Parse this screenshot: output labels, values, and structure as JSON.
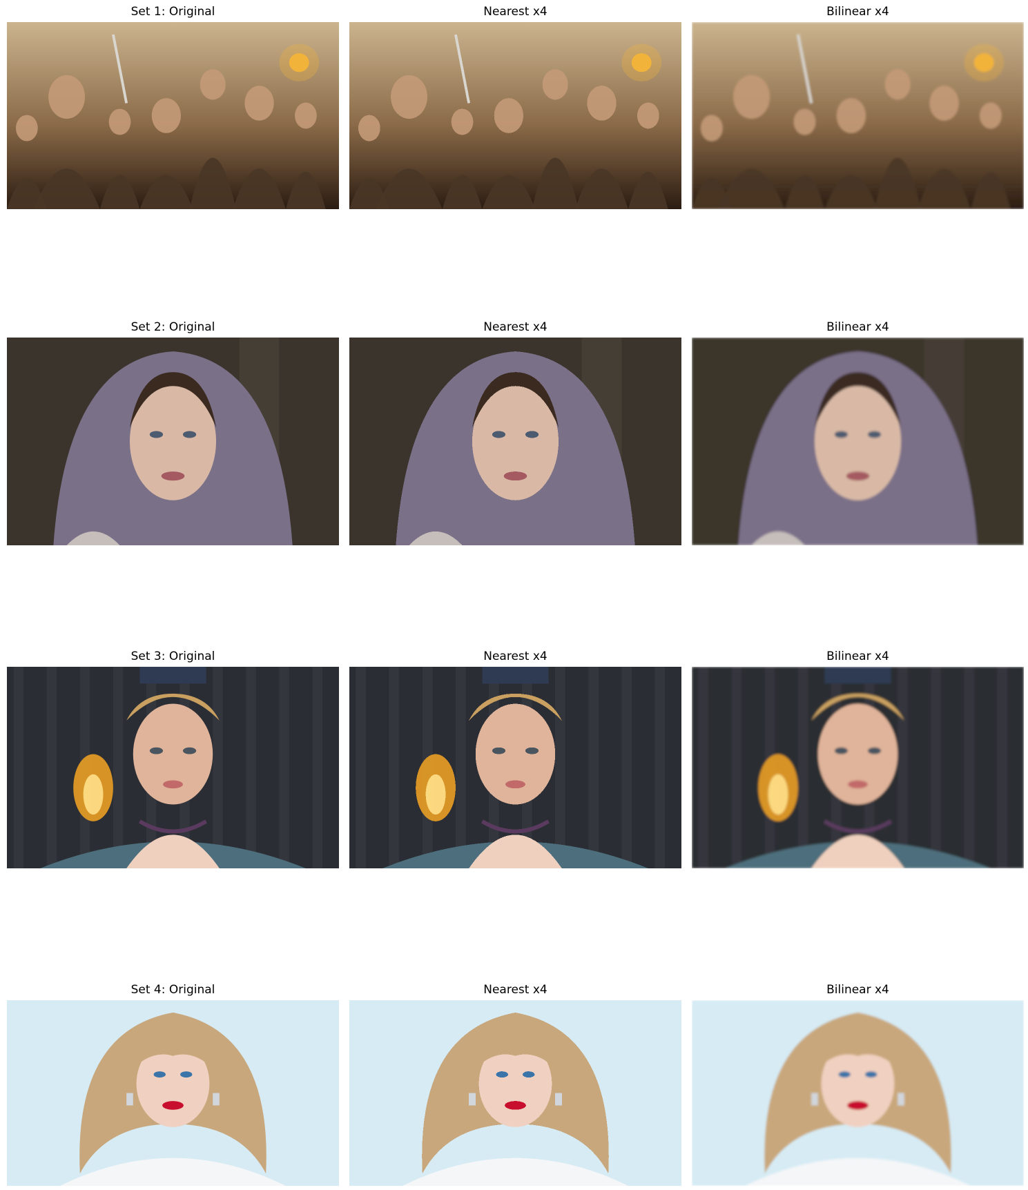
{
  "figure": {
    "rows": [
      {
        "id": "set1",
        "panels": [
          {
            "title": "Set 1: Original",
            "method": "original",
            "scene": "fantasy-battle-ensemble",
            "colors": {
              "sky": "#cbb48e",
              "mid": "#8a6a48",
              "dark": "#2b1c12",
              "accent": "#f2b33a"
            }
          },
          {
            "title": "Nearest x4",
            "method": "nearest",
            "scene": "fantasy-battle-ensemble",
            "colors": {
              "sky": "#cbb48e",
              "mid": "#8a6a48",
              "dark": "#2b1c12",
              "accent": "#f2b33a"
            }
          },
          {
            "title": "Bilinear x4",
            "method": "bilinear",
            "scene": "fantasy-battle-ensemble",
            "colors": {
              "sky": "#cbb48e",
              "mid": "#8a6a48",
              "dark": "#2b1c12",
              "accent": "#f2b33a"
            }
          }
        ]
      },
      {
        "id": "set2",
        "panels": [
          {
            "title": "Set 2: Original",
            "method": "original",
            "scene": "hooded-woman-portrait",
            "colors": {
              "bg": "#3a342c",
              "hood": "#7a7088",
              "skin": "#d9b9a6",
              "lips": "#a45a60"
            }
          },
          {
            "title": "Nearest x4",
            "method": "nearest",
            "scene": "hooded-woman-portrait",
            "colors": {
              "bg": "#3a342c",
              "hood": "#7a7088",
              "skin": "#d9b9a6",
              "lips": "#a45a60"
            }
          },
          {
            "title": "Bilinear x4",
            "method": "bilinear",
            "scene": "hooded-woman-portrait",
            "colors": {
              "bg": "#3a342c",
              "hood": "#7a7088",
              "skin": "#d9b9a6",
              "lips": "#a45a60"
            }
          }
        ]
      },
      {
        "id": "set3",
        "panels": [
          {
            "title": "Set 3: Original",
            "method": "original",
            "scene": "crowned-queen-portrait",
            "colors": {
              "bg": "#2a2d33",
              "fire": "#f6a623",
              "skin": "#e0b49a",
              "gown": "#4d6e7c"
            }
          },
          {
            "title": "Nearest x4",
            "method": "nearest",
            "scene": "crowned-queen-portrait",
            "colors": {
              "bg": "#2a2d33",
              "fire": "#f6a623",
              "skin": "#e0b49a",
              "gown": "#4d6e7c"
            }
          },
          {
            "title": "Bilinear x4",
            "method": "bilinear",
            "scene": "crowned-queen-portrait",
            "colors": {
              "bg": "#2a2d33",
              "fire": "#f6a623",
              "skin": "#e0b49a",
              "gown": "#4d6e7c"
            }
          }
        ]
      },
      {
        "id": "set4",
        "panels": [
          {
            "title": "Set 4: Original",
            "method": "original",
            "scene": "blonde-woman-portrait",
            "colors": {
              "bg": "#d6ebf4",
              "hair": "#c9a77c",
              "skin": "#f0d0c0",
              "lips": "#c8102e"
            }
          },
          {
            "title": "Nearest x4",
            "method": "nearest",
            "scene": "blonde-woman-portrait",
            "colors": {
              "bg": "#d6ebf4",
              "hair": "#c9a77c",
              "skin": "#f0d0c0",
              "lips": "#c8102e"
            }
          },
          {
            "title": "Bilinear x4",
            "method": "bilinear",
            "scene": "blonde-woman-portrait",
            "colors": {
              "bg": "#d6ebf4",
              "hair": "#c9a77c",
              "skin": "#f0d0c0",
              "lips": "#c8102e"
            }
          }
        ]
      }
    ]
  }
}
